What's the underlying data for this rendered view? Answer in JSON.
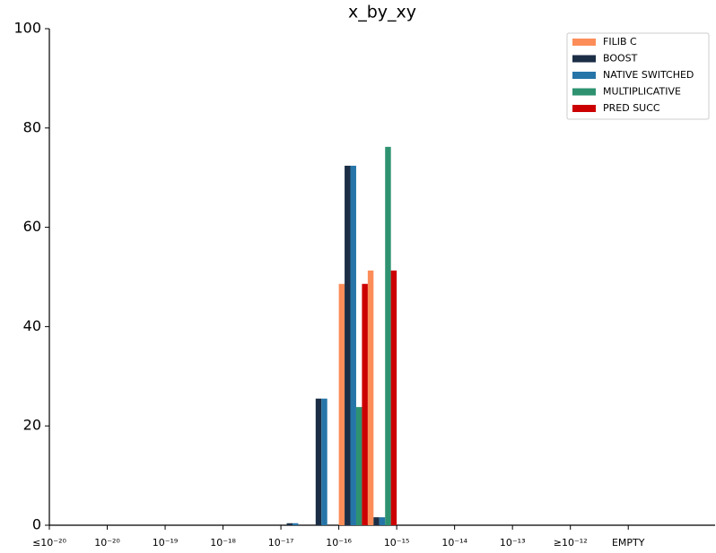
{
  "chart_data": {
    "type": "bar",
    "title": "x_by_xy",
    "categories": [
      "≤10⁻²⁰",
      null,
      "10⁻²⁰",
      null,
      "10⁻¹⁹",
      null,
      "10⁻¹⁸",
      null,
      "10⁻¹⁷",
      null,
      "10⁻¹⁶",
      null,
      "10⁻¹⁵",
      null,
      "10⁻¹⁴",
      null,
      "10⁻¹³",
      null,
      "≥10⁻¹²",
      null,
      "EMPTY",
      null,
      null
    ],
    "series": [
      {
        "name": "FILIB C",
        "color": "#fc8d59",
        "values": [
          0,
          0,
          0,
          0,
          0,
          0,
          0,
          0,
          0,
          0,
          48.6,
          51.3,
          0,
          0,
          0,
          0,
          0,
          0,
          0,
          0,
          0,
          0,
          0
        ]
      },
      {
        "name": "BOOST",
        "color": "#1b2e45",
        "values": [
          0,
          0,
          0,
          0,
          0,
          0,
          0,
          0,
          0.4,
          25.5,
          72.4,
          1.6,
          0,
          0,
          0,
          0,
          0,
          0,
          0,
          0,
          0,
          0,
          0
        ]
      },
      {
        "name": "NATIVE SWITCHED",
        "color": "#2675a8",
        "values": [
          0,
          0,
          0,
          0,
          0,
          0,
          0,
          0,
          0.4,
          25.5,
          72.4,
          1.6,
          0,
          0,
          0,
          0,
          0,
          0,
          0,
          0,
          0,
          0,
          0
        ]
      },
      {
        "name": "MULTIPLICATIVE",
        "color": "#2e9271",
        "values": [
          0,
          0,
          0,
          0,
          0,
          0,
          0,
          0,
          0,
          0,
          23.8,
          76.2,
          0,
          0,
          0,
          0,
          0,
          0,
          0,
          0,
          0,
          0,
          0
        ]
      },
      {
        "name": "PRED SUCC",
        "color": "#cc0000",
        "values": [
          0,
          0,
          0,
          0,
          0,
          0,
          0,
          0,
          0,
          0,
          48.6,
          51.3,
          0,
          0,
          0,
          0,
          0,
          0,
          0,
          0,
          0,
          0,
          0
        ]
      }
    ],
    "ylim": [
      0,
      100
    ],
    "yticks": [
      0,
      20,
      40,
      60,
      80,
      100
    ],
    "grid": false,
    "legend": "upper right"
  }
}
